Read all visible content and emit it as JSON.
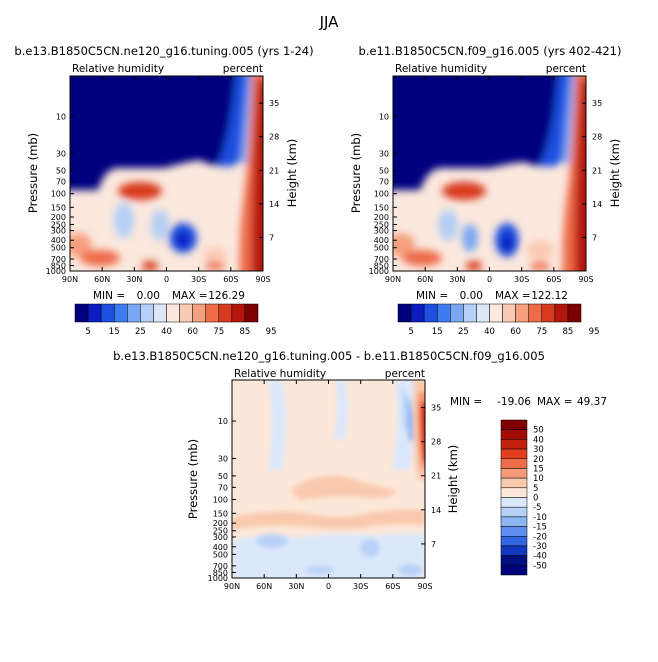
{
  "page_title": "JJA",
  "chart_data": [
    {
      "type": "heatmap",
      "title": "b.e13.B1850C5CN.ne120_g16.tuning.005 (yrs 1-24)",
      "variable_label": "Relative humidity",
      "units_label": "percent",
      "xlabel": "",
      "ylabel": "Pressure (mb)",
      "y2label": "Height (km)",
      "x_ticks": [
        "90N",
        "60N",
        "30N",
        "0",
        "30S",
        "60S",
        "90S"
      ],
      "y_ticks": [
        "10",
        "30",
        "50",
        "70",
        "100",
        "150",
        "200",
        "250",
        "300",
        "400",
        "500",
        "700",
        "850",
        "1000"
      ],
      "y2_ticks": [
        "35",
        "28",
        "21",
        "14",
        "7"
      ],
      "ylim": [
        1000,
        3
      ],
      "stats": {
        "min_label": "MIN =",
        "min": "0.00",
        "max_label": "MAX =",
        "max": "126.29"
      },
      "colorbar": {
        "levels": [
          "5",
          "15",
          "25",
          "40",
          "60",
          "75",
          "85",
          "95"
        ]
      }
    },
    {
      "type": "heatmap",
      "title": "b.e11.B1850C5CN.f09_g16.005 (yrs 402-421)",
      "variable_label": "Relative humidity",
      "units_label": "percent",
      "xlabel": "",
      "ylabel": "Pressure (mb)",
      "y2label": "Height (km)",
      "x_ticks": [
        "90N",
        "60N",
        "30N",
        "0",
        "30S",
        "60S",
        "90S"
      ],
      "y_ticks": [
        "10",
        "30",
        "50",
        "70",
        "100",
        "150",
        "200",
        "250",
        "300",
        "400",
        "500",
        "700",
        "850",
        "1000"
      ],
      "y2_ticks": [
        "35",
        "28",
        "21",
        "14",
        "7"
      ],
      "ylim": [
        1000,
        3
      ],
      "stats": {
        "min_label": "MIN =",
        "min": "0.00",
        "max_label": "MAX =",
        "max": "122.12"
      },
      "colorbar": {
        "levels": [
          "5",
          "15",
          "25",
          "40",
          "60",
          "75",
          "85",
          "95"
        ]
      }
    },
    {
      "type": "heatmap",
      "title": "b.e13.B1850C5CN.ne120_g16.tuning.005 - b.e11.B1850C5CN.f09_g16.005",
      "variable_label": "Relative humidity",
      "units_label": "percent",
      "xlabel": "",
      "ylabel": "Pressure (mb)",
      "y2label": "Height (km)",
      "x_ticks": [
        "90N",
        "60N",
        "30N",
        "0",
        "30S",
        "60S",
        "90S"
      ],
      "y_ticks": [
        "10",
        "30",
        "50",
        "70",
        "100",
        "150",
        "200",
        "250",
        "300",
        "400",
        "500",
        "700",
        "850",
        "1000"
      ],
      "y2_ticks": [
        "35",
        "28",
        "21",
        "14",
        "7"
      ],
      "ylim": [
        1000,
        3
      ],
      "stats": {
        "min_label": "MIN =",
        "min": "-19.06",
        "max_label": "MAX =",
        "max": "49.37"
      },
      "colorbar": {
        "levels": [
          "50",
          "40",
          "30",
          "20",
          "15",
          "10",
          "5",
          "0",
          "-5",
          "-10",
          "-15",
          "-20",
          "-30",
          "-40",
          "-50"
        ]
      }
    }
  ],
  "colors": {
    "seq": [
      "#00007f",
      "#0a1cc0",
      "#1f4fe0",
      "#3d7cf0",
      "#7aa7f3",
      "#b5cff5",
      "#dde8f7",
      "#fbe8de",
      "#f9cbb4",
      "#f5a07e",
      "#ee6b48",
      "#d83a1f",
      "#b4160b",
      "#7f0000"
    ],
    "div": [
      "#7f0000",
      "#a10d05",
      "#c3200f",
      "#e0401f",
      "#ef6e4a",
      "#f59a78",
      "#f9c9ad",
      "#fce7d8",
      "#dbe8fa",
      "#b8d1f7",
      "#8cb5f4",
      "#5e8ff0",
      "#3465e0",
      "#1338c0",
      "#00107f"
    ]
  }
}
